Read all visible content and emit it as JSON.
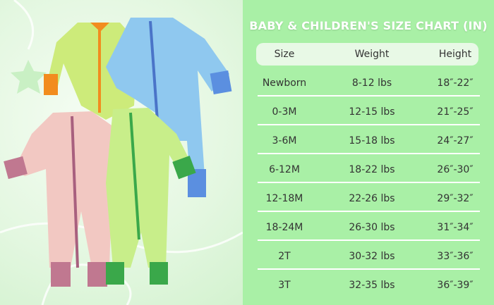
{
  "title": "BABY & CHILDREN'S SIZE CHART (IN)",
  "headers": [
    "Size",
    "Weight",
    "Height"
  ],
  "rows": [
    [
      "Newborn",
      "8-12 lbs",
      "18″-22″"
    ],
    [
      "0-3M",
      "12-15 lbs",
      "21″-25″"
    ],
    [
      "3-6M",
      "15-18 lbs",
      "24″-27″"
    ],
    [
      "6-12M",
      "18-22 lbs",
      "26″-30″"
    ],
    [
      "12-18M",
      "22-26 lbs",
      "29″-32″"
    ],
    [
      "18-24M",
      "26-30 lbs",
      "31″-34″"
    ],
    [
      "2T",
      "30-32 lbs",
      "33″-36″"
    ],
    [
      "3T",
      "32-35 lbs",
      "36″-39″"
    ]
  ],
  "colors": {
    "panel": "#a9f0a6",
    "header_row": "#e8f9e6"
  }
}
